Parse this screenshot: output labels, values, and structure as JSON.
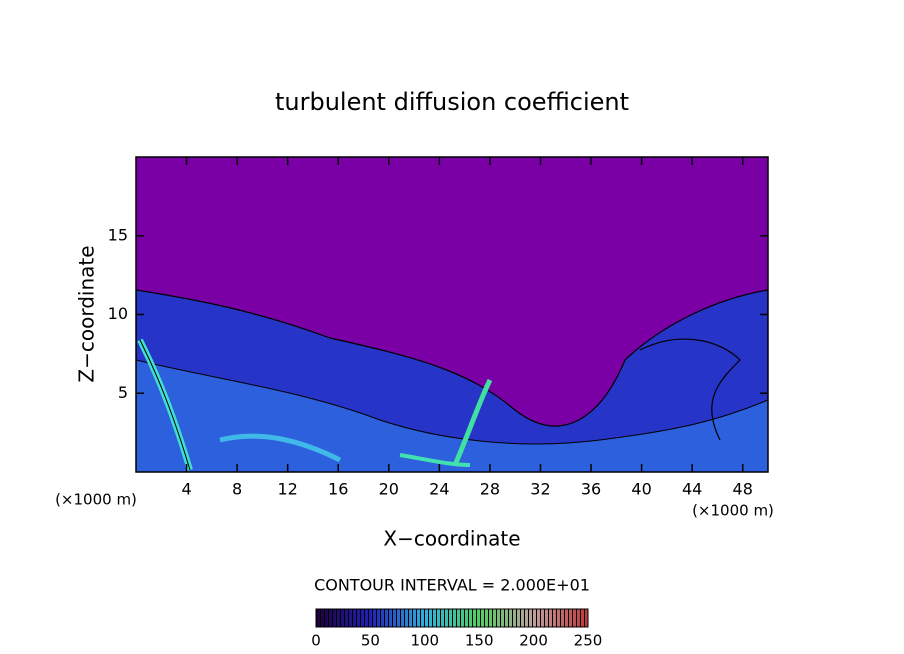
{
  "chart_data": {
    "type": "contour",
    "title": "turbulent diffusion coefficient",
    "xlabel": "X−coordinate",
    "ylabel": "Z−coordinate",
    "x_unit": "(×1000 m)",
    "y_unit": "(×1000 m)",
    "xlim": [
      0,
      50
    ],
    "xticks": [
      4,
      8,
      12,
      16,
      20,
      24,
      28,
      32,
      36,
      40,
      44,
      48
    ],
    "ylim": [
      0,
      20
    ],
    "yticks": [
      5,
      10,
      15
    ],
    "annotation": "CONTOUR INTERVAL = 2.000E+01",
    "colorbar": {
      "lim": [
        0,
        250
      ],
      "ticks": [
        0,
        50,
        100,
        150,
        200,
        250
      ]
    }
  }
}
